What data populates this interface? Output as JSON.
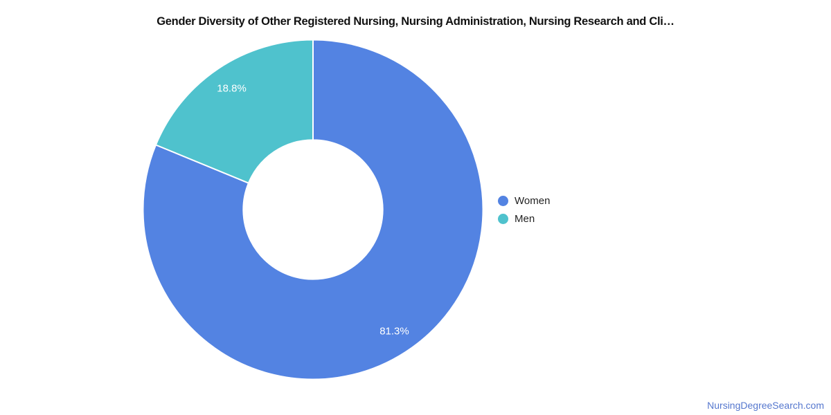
{
  "chart_data": {
    "type": "pie",
    "donut": true,
    "title": "Gender Diversity of Other Registered Nursing, Nursing Administration, Nursing Research and Cli…",
    "slices": [
      {
        "label": "Women",
        "value": 81.3,
        "display": "81.3%",
        "color": "#5383e2"
      },
      {
        "label": "Men",
        "value": 18.8,
        "display": "18.8%",
        "color": "#4fc2cd"
      }
    ],
    "start_angle_deg": 0,
    "direction": "clockwise",
    "hole_ratio": 0.41,
    "legend_position": "right",
    "slice_label_color": "#ffffff"
  },
  "footer": {
    "link_label": "NursingDegreeSearch.com",
    "color": "#5577ce"
  }
}
